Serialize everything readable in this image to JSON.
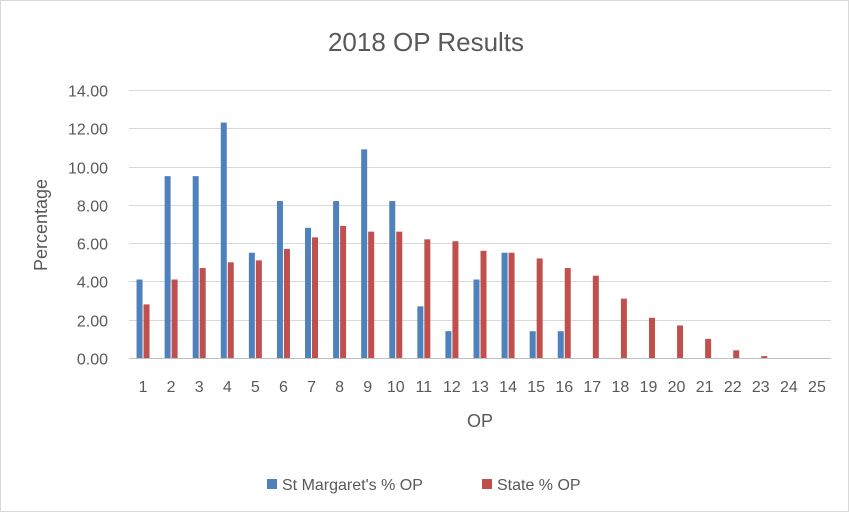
{
  "chart_data": {
    "type": "bar",
    "title": "2018 OP Results",
    "xlabel": "OP",
    "ylabel": "Percentage",
    "ylim": [
      0,
      14
    ],
    "yticks": [
      "0.00",
      "2.00",
      "4.00",
      "6.00",
      "8.00",
      "10.00",
      "12.00",
      "14.00"
    ],
    "categories": [
      "1",
      "2",
      "3",
      "4",
      "5",
      "6",
      "7",
      "8",
      "9",
      "10",
      "11",
      "12",
      "13",
      "14",
      "15",
      "16",
      "17",
      "18",
      "19",
      "20",
      "21",
      "22",
      "23",
      "24",
      "25"
    ],
    "series": [
      {
        "name": "St Margaret's % OP",
        "color": "#4f81bd",
        "values": [
          4.1,
          9.5,
          9.5,
          12.3,
          5.5,
          8.2,
          6.8,
          8.2,
          10.9,
          8.2,
          2.7,
          1.4,
          4.1,
          5.5,
          1.4,
          1.4,
          0,
          0,
          0,
          0,
          0,
          0,
          0,
          0,
          0
        ]
      },
      {
        "name": "State % OP",
        "color": "#c0504d",
        "values": [
          2.8,
          4.1,
          4.7,
          5.0,
          5.1,
          5.7,
          6.3,
          6.9,
          6.6,
          6.6,
          6.2,
          6.1,
          5.6,
          5.5,
          5.2,
          4.7,
          4.3,
          3.1,
          2.1,
          1.7,
          1.0,
          0.4,
          0.1,
          0,
          0
        ]
      }
    ],
    "legend_position": "bottom",
    "grid": true
  }
}
